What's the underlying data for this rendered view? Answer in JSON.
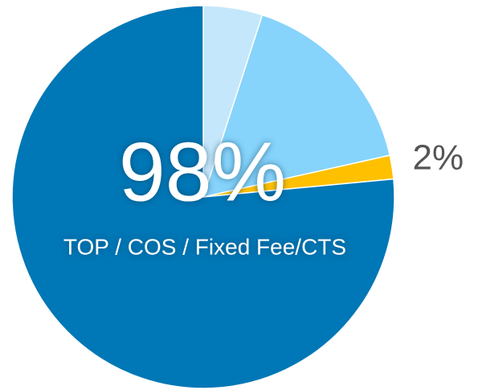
{
  "chart_data": {
    "type": "pie",
    "values": [
      5,
      16.5,
      2,
      76.5
    ],
    "colors": [
      "#c4e7fb",
      "#86d3fb",
      "#ffc000",
      "#0077b6"
    ],
    "value_labels": [
      null,
      null,
      "2%",
      null
    ],
    "annotations": [
      {
        "label": "98%"
      },
      {
        "label": "TOP / COS / Fixed Fee/CTS"
      }
    ]
  }
}
